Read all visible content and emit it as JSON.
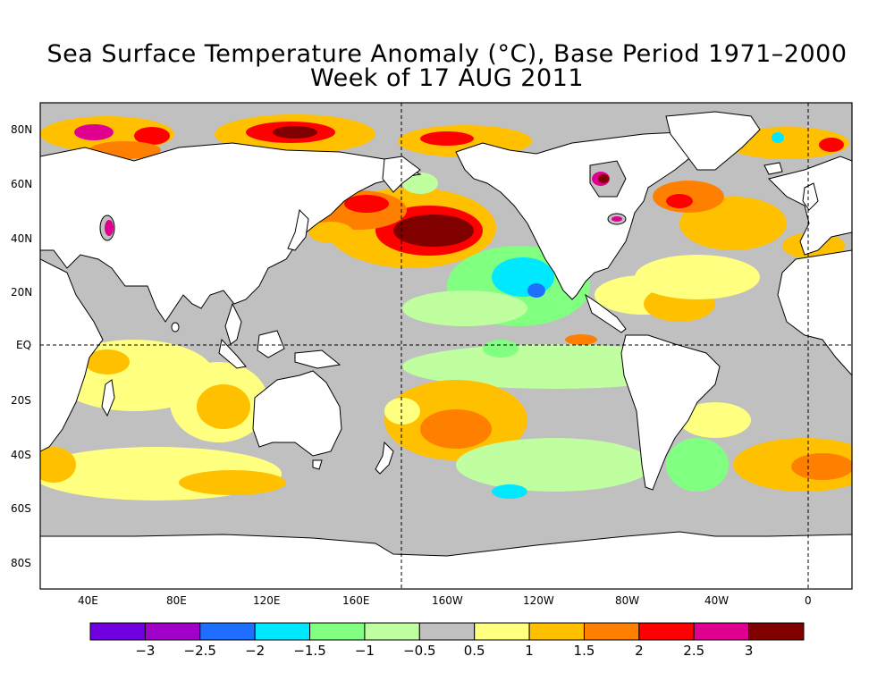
{
  "title": "Sea Surface Temperature Anomaly (°C), Base Period 1971–2000",
  "subtitle": "Week of 17 AUG 2011",
  "map": {
    "land_color": "#ffffff",
    "ocean_neutral_color": "#c0c0c0",
    "lon_labels": [
      "40E",
      "80E",
      "120E",
      "160E",
      "160W",
      "120W",
      "80W",
      "40W",
      "0"
    ],
    "lat_labels": [
      "80N",
      "60N",
      "40N",
      "20N",
      "EQ",
      "20S",
      "40S",
      "60S",
      "80S"
    ],
    "reference_lines": [
      "180",
      "0",
      "EQ"
    ]
  },
  "colorbar": {
    "colors": [
      "#7000e0",
      "#a000c8",
      "#1e6eff",
      "#00e8ff",
      "#80ff80",
      "#c0ffa0",
      "#c0c0c0",
      "#ffff80",
      "#ffc000",
      "#ff8000",
      "#ff0000",
      "#e00090",
      "#800000"
    ],
    "labels": [
      "−3",
      "−2.5",
      "−2",
      "−1.5",
      "−1",
      "−0.5",
      "0.5",
      "1",
      "1.5",
      "2",
      "2.5",
      "3"
    ]
  }
}
